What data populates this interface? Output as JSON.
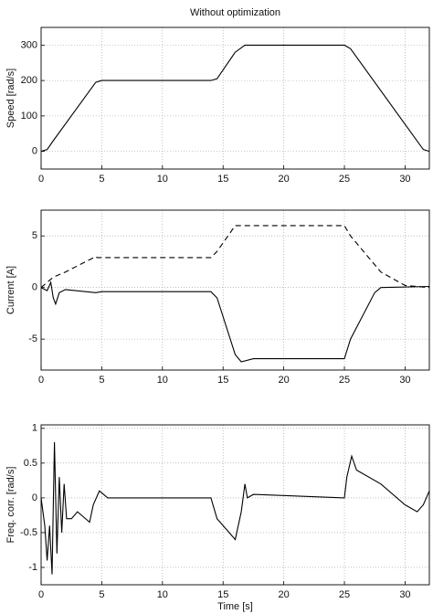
{
  "chart_data": [
    {
      "type": "line",
      "title": "Without optimization",
      "ylabel": "Speed [rad/s]",
      "xlim": [
        0,
        32
      ],
      "xticks": [
        0,
        5,
        10,
        15,
        20,
        25,
        30
      ],
      "ylim": [
        -50,
        350
      ],
      "yticks": [
        0,
        100,
        200,
        300
      ],
      "grid": true,
      "series": [
        {
          "color": "#000000",
          "linestyle": "solid",
          "x": [
            0,
            0.5,
            1,
            4.5,
            5,
            14,
            14.5,
            16,
            16.8,
            25,
            25.5,
            31.5,
            32
          ],
          "values": [
            0,
            5,
            30,
            195,
            200,
            200,
            205,
            280,
            300,
            300,
            290,
            5,
            0
          ]
        }
      ]
    },
    {
      "type": "line",
      "ylabel": "Current [A]",
      "xlim": [
        0,
        32
      ],
      "xticks": [
        0,
        5,
        10,
        15,
        20,
        25,
        30
      ],
      "ylim": [
        -8,
        7.5
      ],
      "yticks": [
        -5,
        0,
        5
      ],
      "grid": true,
      "series": [
        {
          "color": "#000000",
          "linestyle": "solid",
          "x": [
            0,
            0.5,
            0.8,
            1,
            1.2,
            1.5,
            2,
            4.5,
            5,
            14,
            14.5,
            16,
            16.5,
            17.5,
            25,
            25.5,
            27.5,
            28,
            32
          ],
          "values": [
            0,
            -0.3,
            0.5,
            -1,
            -1.6,
            -0.5,
            -0.2,
            -0.5,
            -0.4,
            -0.4,
            -1,
            -6.5,
            -7.2,
            -6.9,
            -6.9,
            -5,
            -0.5,
            0,
            0.1
          ]
        },
        {
          "color": "#000000",
          "linestyle": "dashed",
          "x": [
            0,
            1,
            2,
            4.5,
            4.6,
            5,
            14,
            14.5,
            16,
            25,
            25.5,
            28,
            30,
            32
          ],
          "values": [
            0,
            1,
            1.5,
            3,
            2.9,
            2.9,
            2.9,
            3.5,
            6,
            6,
            5,
            1.5,
            0.2,
            0
          ]
        }
      ]
    },
    {
      "type": "line",
      "ylabel": "Freq. corr. [rad/s]",
      "xlabel": "Time [s]",
      "xlim": [
        0,
        32
      ],
      "xticks": [
        0,
        5,
        10,
        15,
        20,
        25,
        30
      ],
      "ylim": [
        -1.25,
        1.05
      ],
      "yticks": [
        -1,
        -0.5,
        0,
        0.5,
        1
      ],
      "grid": true,
      "series": [
        {
          "color": "#000000",
          "linestyle": "solid",
          "x": [
            0,
            0.3,
            0.5,
            0.7,
            0.9,
            1.1,
            1.3,
            1.5,
            1.7,
            1.9,
            2.1,
            2.5,
            3,
            4,
            4.3,
            4.8,
            5.5,
            14,
            14.5,
            15.5,
            16,
            16.5,
            16.8,
            17,
            17.5,
            25,
            25.2,
            25.6,
            26,
            28,
            30,
            31,
            31.5,
            32
          ],
          "values": [
            0,
            -0.4,
            -0.9,
            -0.4,
            -1.1,
            0.8,
            -0.8,
            0.3,
            -0.5,
            0.2,
            -0.3,
            -0.3,
            -0.2,
            -0.35,
            -0.1,
            0.1,
            0,
            0,
            -0.3,
            -0.5,
            -0.6,
            -0.2,
            0.2,
            0,
            0.05,
            0,
            0.3,
            0.6,
            0.4,
            0.2,
            -0.1,
            -0.2,
            -0.1,
            0.1
          ]
        }
      ]
    }
  ]
}
